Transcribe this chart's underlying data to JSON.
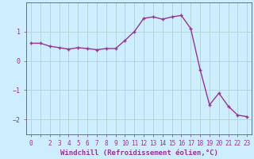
{
  "x": [
    0,
    1,
    2,
    3,
    4,
    5,
    6,
    7,
    8,
    9,
    10,
    11,
    12,
    13,
    14,
    15,
    16,
    17,
    18,
    19,
    20,
    21,
    22,
    23
  ],
  "y": [
    0.6,
    0.6,
    0.5,
    0.45,
    0.4,
    0.45,
    0.42,
    0.38,
    0.42,
    0.42,
    0.7,
    1.0,
    1.45,
    1.5,
    1.42,
    1.5,
    1.55,
    1.1,
    -0.3,
    -1.5,
    -1.1,
    -1.55,
    -1.85,
    -1.9
  ],
  "line_color": "#993399",
  "marker": "+",
  "marker_size": 3,
  "background_color": "#cceeff",
  "grid_color": "#aacccc",
  "xlabel": "Windchill (Refroidissement éolien,°C)",
  "xlim": [
    -0.5,
    23.5
  ],
  "ylim": [
    -2.5,
    2.0
  ],
  "yticks": [
    -2,
    -1,
    0,
    1
  ],
  "xtick_labels": [
    "0",
    "",
    "2",
    "3",
    "4",
    "5",
    "6",
    "7",
    "8",
    "9",
    "10",
    "11",
    "12",
    "13",
    "14",
    "15",
    "16",
    "17",
    "18",
    "19",
    "20",
    "21",
    "22",
    "23"
  ],
  "tick_label_fontsize": 5.5,
  "xlabel_fontsize": 6.5,
  "line_width": 1.0
}
